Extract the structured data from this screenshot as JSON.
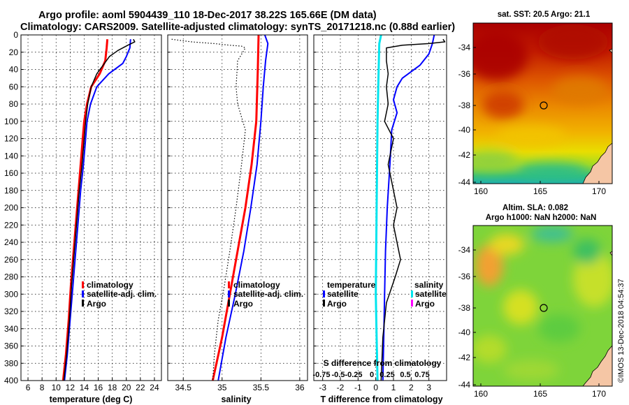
{
  "header": {
    "title_line1": "Argo profile: aoml 5904439_110 18-Dec-2017 38.22S 165.66E (DM data)",
    "title_line2": "Climatology: CARS2009. Satellite-adjusted climatology: synTS_20171218.nc (0.88d earlier)"
  },
  "colors": {
    "climatology": "#ff0000",
    "satellite_adj": "#0000ff",
    "argo": "#000000",
    "sat_salinity": "#00e5ee",
    "argo_salinity": "#ff00ff"
  },
  "chart_data": [
    {
      "type": "line",
      "name": "temperature-profile",
      "xlabel": "temperature (deg C)",
      "ylabel": "depth",
      "xlim": [
        5,
        25
      ],
      "ylim": [
        0,
        400
      ],
      "xticks": [
        6,
        8,
        10,
        12,
        14,
        16,
        18,
        20,
        22,
        24
      ],
      "yticks": [
        0,
        20,
        40,
        60,
        80,
        100,
        120,
        140,
        160,
        180,
        200,
        220,
        240,
        260,
        280,
        300,
        320,
        340,
        360,
        380,
        400
      ],
      "legend": [
        "climatology",
        "satellite-adj. clim.",
        "Argo"
      ],
      "series": [
        {
          "name": "climatology",
          "color": "#ff0000",
          "width": 3,
          "points": [
            [
              17.3,
              5
            ],
            [
              17.2,
              15
            ],
            [
              17.0,
              30
            ],
            [
              16.2,
              45
            ],
            [
              15.0,
              60
            ],
            [
              14.4,
              80
            ],
            [
              14.0,
              100
            ],
            [
              13.8,
              120
            ],
            [
              13.5,
              150
            ],
            [
              13.2,
              180
            ],
            [
              12.9,
              210
            ],
            [
              12.5,
              250
            ],
            [
              12.1,
              290
            ],
            [
              11.8,
              330
            ],
            [
              11.4,
              370
            ],
            [
              11.0,
              400
            ]
          ]
        },
        {
          "name": "satellite-adj. clim.",
          "color": "#0000ff",
          "width": 2,
          "points": [
            [
              20.6,
              5
            ],
            [
              20.5,
              15
            ],
            [
              20.0,
              25
            ],
            [
              19.5,
              33
            ],
            [
              17.5,
              45
            ],
            [
              15.8,
              60
            ],
            [
              14.9,
              80
            ],
            [
              14.4,
              100
            ],
            [
              14.2,
              120
            ],
            [
              13.9,
              150
            ],
            [
              13.5,
              180
            ],
            [
              13.2,
              210
            ],
            [
              12.8,
              250
            ],
            [
              12.4,
              290
            ],
            [
              12.0,
              330
            ],
            [
              11.6,
              370
            ],
            [
              11.2,
              400
            ]
          ]
        },
        {
          "name": "Argo",
          "color": "#000000",
          "width": 1.5,
          "points": [
            [
              21.0,
              5
            ],
            [
              21.2,
              8
            ],
            [
              20.2,
              12
            ],
            [
              18.8,
              18
            ],
            [
              17.6,
              25
            ],
            [
              16.7,
              35
            ],
            [
              15.8,
              45
            ],
            [
              15.0,
              60
            ],
            [
              14.5,
              80
            ],
            [
              14.2,
              100
            ],
            [
              14.0,
              120
            ],
            [
              13.7,
              150
            ],
            [
              13.3,
              180
            ],
            [
              13.0,
              210
            ],
            [
              12.6,
              250
            ],
            [
              12.2,
              290
            ],
            [
              11.9,
              330
            ],
            [
              11.5,
              370
            ],
            [
              11.1,
              400
            ]
          ]
        }
      ]
    },
    {
      "type": "line",
      "name": "salinity-profile",
      "xlabel": "salinity",
      "xlim": [
        34.3,
        36.1
      ],
      "ylim": [
        0,
        400
      ],
      "xticks": [
        34.5,
        35,
        35.5,
        36
      ],
      "xtick_labels": [
        "34.5",
        "35",
        "35.5",
        "36"
      ],
      "legend": [
        "climatology",
        "satellite-adj. clim.",
        "Argo"
      ],
      "series": [
        {
          "name": "climatology",
          "color": "#ff0000",
          "width": 3,
          "points": [
            [
              35.47,
              0
            ],
            [
              35.46,
              40
            ],
            [
              35.44,
              100
            ],
            [
              35.38,
              150
            ],
            [
              35.3,
              200
            ],
            [
              35.2,
              250
            ],
            [
              35.1,
              300
            ],
            [
              35.0,
              350
            ],
            [
              34.88,
              400
            ]
          ]
        },
        {
          "name": "satellite-adj. clim.",
          "color": "#0000ff",
          "width": 2,
          "points": [
            [
              35.55,
              0
            ],
            [
              35.59,
              10
            ],
            [
              35.56,
              30
            ],
            [
              35.53,
              60
            ],
            [
              35.5,
              100
            ],
            [
              35.45,
              150
            ],
            [
              35.37,
              200
            ],
            [
              35.28,
              250
            ],
            [
              35.17,
              300
            ],
            [
              35.05,
              350
            ],
            [
              34.95,
              400
            ]
          ]
        },
        {
          "name": "Argo",
          "color": "#000000",
          "width": 1.2,
          "dashed": true,
          "points": [
            [
              34.35,
              5
            ],
            [
              34.6,
              8
            ],
            [
              34.9,
              10
            ],
            [
              35.1,
              12
            ],
            [
              35.25,
              13
            ],
            [
              35.3,
              15
            ],
            [
              35.2,
              30
            ],
            [
              35.18,
              60
            ],
            [
              35.2,
              80
            ],
            [
              35.3,
              110
            ],
            [
              35.25,
              150
            ],
            [
              35.18,
              200
            ],
            [
              35.1,
              250
            ],
            [
              35.03,
              290
            ],
            [
              34.95,
              330
            ],
            [
              34.9,
              370
            ],
            [
              34.88,
              400
            ]
          ]
        }
      ]
    },
    {
      "type": "line",
      "name": "difference-profile",
      "xlabel": "T difference from climatology",
      "xlim": [
        -3.5,
        4.0
      ],
      "ylim": [
        0,
        400
      ],
      "xticks": [
        -3,
        -2,
        -1,
        0,
        1,
        2,
        3
      ],
      "xtick_labels": [
        "-3",
        "-2",
        "-1",
        "0",
        "1",
        "2",
        "3"
      ],
      "s_axis_label": "S difference from climatology",
      "s_tick_labels": [
        "-0.75",
        "-0.5",
        "-0.25",
        "0",
        "0.25",
        "0.5",
        "0.75"
      ],
      "legend_temperature": {
        "heading": "temperature",
        "items": [
          "satellite",
          "Argo"
        ]
      },
      "legend_salinity": {
        "heading": "salinity",
        "items": [
          "satellite",
          "Argo"
        ]
      },
      "series": [
        {
          "name": "T satellite",
          "color": "#0000ff",
          "width": 2,
          "points": [
            [
              3.3,
              0
            ],
            [
              3.2,
              10
            ],
            [
              3.0,
              22
            ],
            [
              2.5,
              35
            ],
            [
              1.5,
              50
            ],
            [
              1.2,
              60
            ],
            [
              1.0,
              75
            ],
            [
              1.2,
              90
            ],
            [
              0.9,
              110
            ],
            [
              0.8,
              150
            ],
            [
              0.65,
              200
            ],
            [
              0.55,
              250
            ],
            [
              0.5,
              300
            ],
            [
              0.45,
              350
            ],
            [
              0.4,
              400
            ]
          ]
        },
        {
          "name": "T Argo",
          "color": "#000000",
          "width": 1.5,
          "points": [
            [
              3.8,
              5
            ],
            [
              3.9,
              8
            ],
            [
              3.0,
              10
            ],
            [
              1.5,
              12
            ],
            [
              0.6,
              15
            ],
            [
              0.6,
              30
            ],
            [
              0.7,
              45
            ],
            [
              0.6,
              60
            ],
            [
              0.7,
              80
            ],
            [
              0.5,
              100
            ],
            [
              1.0,
              120
            ],
            [
              0.7,
              150
            ],
            [
              1.2,
              200
            ],
            [
              1.0,
              220
            ],
            [
              1.4,
              260
            ],
            [
              1.1,
              280
            ],
            [
              0.6,
              310
            ],
            [
              0.4,
              350
            ],
            [
              0.3,
              400
            ]
          ]
        },
        {
          "name": "S satellite",
          "color": "#00e5ee",
          "width": 3,
          "points": [
            [
              0.3,
              0
            ],
            [
              0.2,
              10
            ],
            [
              0.15,
              50
            ],
            [
              0.1,
              100
            ],
            [
              0.05,
              200
            ],
            [
              0.0,
              300
            ],
            [
              0.05,
              350
            ],
            [
              0.1,
              400
            ]
          ]
        }
      ]
    }
  ],
  "maps": {
    "sst": {
      "title": "sat. SST: 20.5 Argo: 21.1",
      "yticks": [
        "-34",
        "-36",
        "-38",
        "-40",
        "-42",
        "-44"
      ],
      "xticks": [
        "160",
        "165",
        "170"
      ]
    },
    "sla": {
      "title_line1": "Altim. SLA: 0.082",
      "title_line2": "Argo h1000: NaN h2000: NaN",
      "yticks": [
        "-34",
        "-36",
        "-38",
        "-40",
        "-42",
        "-44"
      ],
      "xticks": [
        "160",
        "165",
        "170"
      ]
    }
  },
  "watermark": "©IMOS 13-Dec-2018 04:54:37"
}
